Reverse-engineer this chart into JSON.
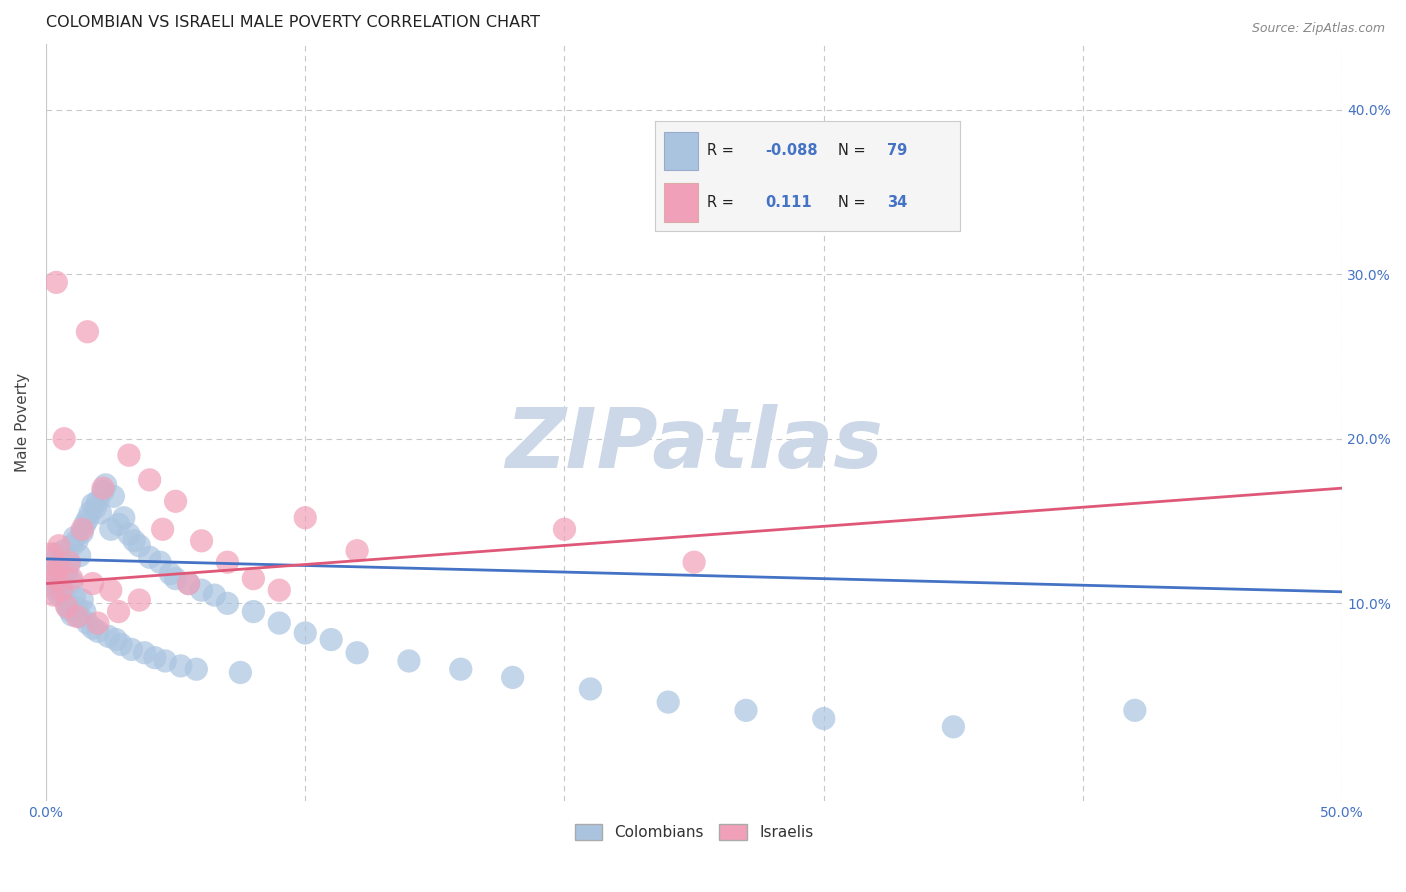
{
  "title": "COLOMBIAN VS ISRAELI MALE POVERTY CORRELATION CHART",
  "source": "Source: ZipAtlas.com",
  "ylabel": "Male Poverty",
  "xlabel": "",
  "xlim": [
    0.0,
    0.5
  ],
  "ylim": [
    -0.02,
    0.44
  ],
  "xtick_labels": [
    "0.0%",
    "",
    "",
    "",
    "",
    "50.0%"
  ],
  "xtick_vals": [
    0.0,
    0.1,
    0.2,
    0.3,
    0.4,
    0.5
  ],
  "ytick_vals": [
    0.1,
    0.2,
    0.3,
    0.4
  ],
  "right_ytick_labels": [
    "10.0%",
    "20.0%",
    "30.0%",
    "40.0%"
  ],
  "colombian_color": "#aac4e0",
  "israeli_color": "#f0a0b8",
  "colombian_R": -0.088,
  "colombian_N": 79,
  "israeli_R": 0.111,
  "israeli_N": 34,
  "background_color": "#ffffff",
  "grid_color": "#c8c8c8",
  "watermark_color": "#ccd8e8",
  "colombian_line_color": "#4472c4",
  "israeli_line_color": "#e05878",
  "colombian_line_x": [
    0.0,
    0.5
  ],
  "colombian_line_y": [
    0.127,
    0.107
  ],
  "israeli_line_x": [
    0.0,
    0.5
  ],
  "israeli_line_y": [
    0.112,
    0.17
  ],
  "colombian_scatter_x": [
    0.003,
    0.003,
    0.003,
    0.004,
    0.004,
    0.005,
    0.005,
    0.005,
    0.006,
    0.006,
    0.007,
    0.007,
    0.008,
    0.008,
    0.009,
    0.009,
    0.01,
    0.01,
    0.01,
    0.011,
    0.011,
    0.012,
    0.012,
    0.013,
    0.013,
    0.014,
    0.014,
    0.015,
    0.015,
    0.016,
    0.016,
    0.017,
    0.018,
    0.018,
    0.019,
    0.02,
    0.02,
    0.021,
    0.022,
    0.023,
    0.024,
    0.025,
    0.026,
    0.027,
    0.028,
    0.029,
    0.03,
    0.032,
    0.033,
    0.034,
    0.036,
    0.038,
    0.04,
    0.042,
    0.044,
    0.046,
    0.048,
    0.05,
    0.052,
    0.055,
    0.058,
    0.06,
    0.065,
    0.07,
    0.075,
    0.08,
    0.09,
    0.1,
    0.11,
    0.12,
    0.14,
    0.16,
    0.18,
    0.21,
    0.24,
    0.27,
    0.3,
    0.35,
    0.42
  ],
  "colombian_scatter_y": [
    0.125,
    0.118,
    0.112,
    0.13,
    0.108,
    0.122,
    0.115,
    0.105,
    0.128,
    0.11,
    0.132,
    0.106,
    0.119,
    0.099,
    0.124,
    0.096,
    0.135,
    0.113,
    0.093,
    0.14,
    0.104,
    0.138,
    0.097,
    0.129,
    0.092,
    0.143,
    0.102,
    0.148,
    0.095,
    0.151,
    0.088,
    0.155,
    0.16,
    0.085,
    0.158,
    0.162,
    0.083,
    0.155,
    0.168,
    0.172,
    0.08,
    0.145,
    0.165,
    0.078,
    0.148,
    0.075,
    0.152,
    0.142,
    0.072,
    0.138,
    0.135,
    0.07,
    0.128,
    0.067,
    0.125,
    0.065,
    0.118,
    0.115,
    0.062,
    0.112,
    0.06,
    0.108,
    0.105,
    0.1,
    0.058,
    0.095,
    0.088,
    0.082,
    0.078,
    0.07,
    0.065,
    0.06,
    0.055,
    0.048,
    0.04,
    0.035,
    0.03,
    0.025,
    0.035
  ],
  "israeli_scatter_x": [
    0.002,
    0.003,
    0.003,
    0.004,
    0.004,
    0.005,
    0.005,
    0.006,
    0.007,
    0.008,
    0.009,
    0.01,
    0.012,
    0.014,
    0.016,
    0.018,
    0.02,
    0.022,
    0.025,
    0.028,
    0.032,
    0.036,
    0.04,
    0.045,
    0.05,
    0.055,
    0.06,
    0.07,
    0.08,
    0.09,
    0.1,
    0.12,
    0.2,
    0.25
  ],
  "israeli_scatter_y": [
    0.13,
    0.118,
    0.105,
    0.295,
    0.115,
    0.135,
    0.122,
    0.108,
    0.2,
    0.098,
    0.125,
    0.115,
    0.092,
    0.145,
    0.265,
    0.112,
    0.088,
    0.17,
    0.108,
    0.095,
    0.19,
    0.102,
    0.175,
    0.145,
    0.162,
    0.112,
    0.138,
    0.125,
    0.115,
    0.108,
    0.152,
    0.132,
    0.145,
    0.125
  ]
}
